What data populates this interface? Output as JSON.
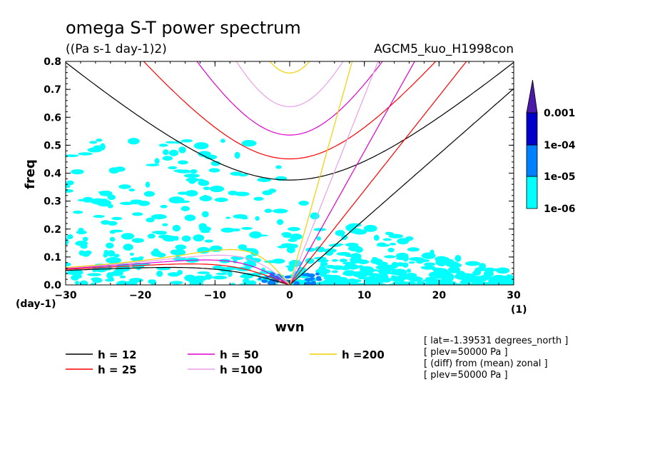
{
  "chart_data": {
    "type": "heatmap",
    "title": "omega S-T power spectrum",
    "subtitle": "((Pa s-1 day-1)2)",
    "model_label": "AGCM5_kuo_H1998con",
    "xlabel": "wvn",
    "ylabel": "freq",
    "x_unit": "(1)",
    "y_unit": "(day-1)",
    "xlim": [
      -30,
      30
    ],
    "ylim": [
      0,
      0.8
    ],
    "x_ticks": [
      "-30",
      "-20",
      "-10",
      "0",
      "10",
      "20",
      "30"
    ],
    "y_ticks": [
      "0.0",
      "0.1",
      "0.2",
      "0.3",
      "0.4",
      "0.5",
      "0.6",
      "0.7",
      "0.8"
    ],
    "colorbar": {
      "labels": [
        "1e-06",
        "1e-05",
        "1e-04",
        "0.001"
      ],
      "colors": [
        "#00ffff",
        "#0080ff",
        "#0000c8",
        "#4a1aa8"
      ]
    },
    "dispersion_curves": [
      {
        "name": "h = 12",
        "h": 12,
        "color": "#000000"
      },
      {
        "name": "h = 25",
        "h": 25,
        "color": "#ff0000"
      },
      {
        "name": "h = 50",
        "h": 50,
        "color": "#e000d0"
      },
      {
        "name": "h =100",
        "h": 100,
        "color": "#e8a0e8"
      },
      {
        "name": "h =200",
        "h": 200,
        "color": "#f0d000"
      }
    ],
    "info_lines": [
      "[ lat=-1.39531 degrees_north ]",
      "[ plev=50000 Pa ]",
      "[ (diff) from (mean) zonal ]",
      "[ plev=50000 Pa ]"
    ]
  }
}
